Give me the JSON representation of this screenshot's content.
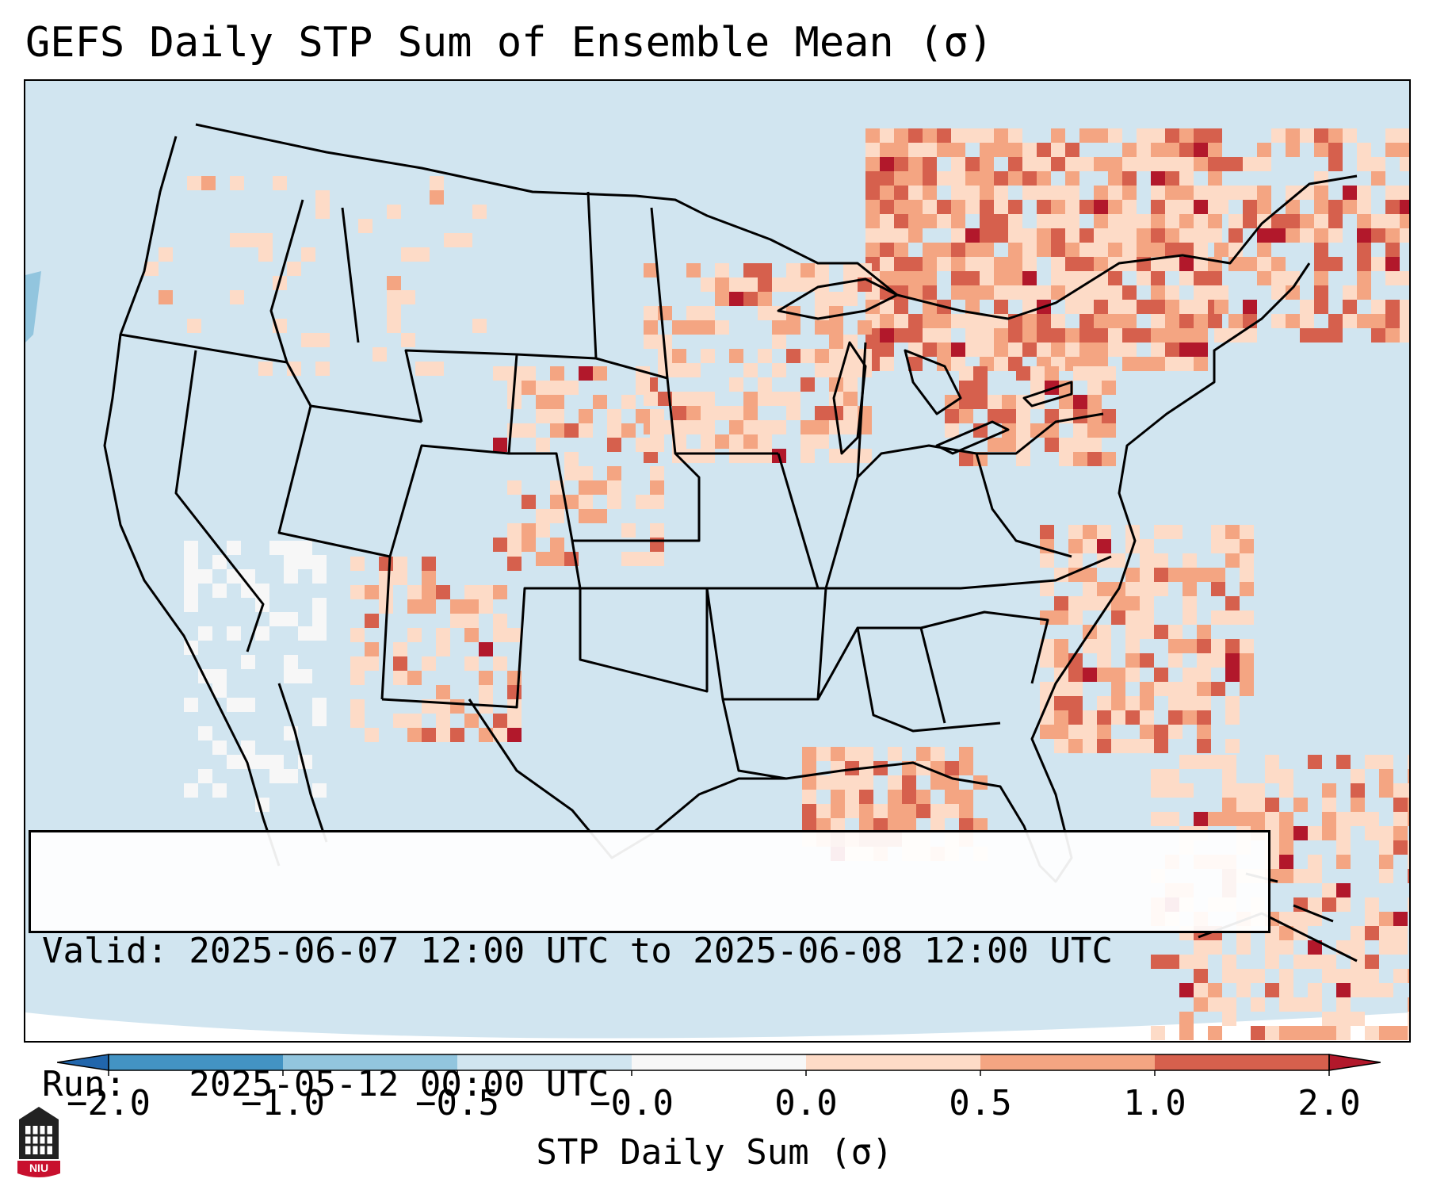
{
  "title": "GEFS Daily STP Sum of Ensemble Mean (σ)",
  "info": {
    "valid_line": "Valid: 2025-06-07 12:00 UTC to 2025-06-08 12:00 UTC",
    "run_line": "Run:   2025-05-12 00:00 UTC"
  },
  "colorbar": {
    "label": "STP Daily Sum (σ)",
    "ticks": [
      "−2.0",
      "−1.0",
      "−0.5",
      "−0.0",
      "0.0",
      "0.5",
      "1.0",
      "2.0"
    ],
    "bins": [
      {
        "range": "<-2.0",
        "color": "#2166ac"
      },
      {
        "range": "-2.0 to -1.0",
        "color": "#4393c3"
      },
      {
        "range": "-1.0 to -0.5",
        "color": "#92c5de"
      },
      {
        "range": "-0.5 to -0.0",
        "color": "#d1e5f0"
      },
      {
        "range": "-0.0 to 0.0",
        "color": "#f7f7f7"
      },
      {
        "range": "0.0 to 0.5",
        "color": "#fddbc7"
      },
      {
        "range": "0.5 to 1.0",
        "color": "#f4a582"
      },
      {
        "range": "1.0 to 2.0",
        "color": "#d6604d"
      },
      {
        "range": ">2.0",
        "color": "#b2182b"
      }
    ]
  },
  "logo_text": "NIU"
}
